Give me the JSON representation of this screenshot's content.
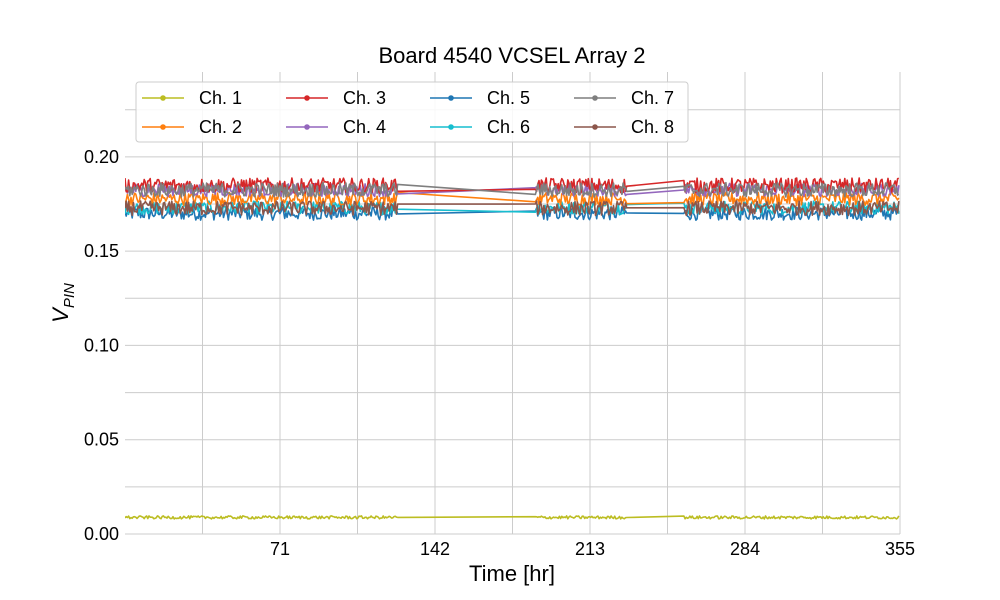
{
  "chart_data": {
    "type": "line",
    "title": "Board 4540 VCSEL Array 2",
    "xlabel": "Time [hr]",
    "ylabel_main": "V",
    "ylabel_sub": "PIN",
    "xlim": [
      0,
      355
    ],
    "ylim": [
      0,
      0.245
    ],
    "xticks": [
      71,
      142,
      213,
      284,
      355
    ],
    "xtick_labels": [
      "71",
      "142",
      "213",
      "284",
      "355"
    ],
    "xgrid_minor": [
      35.5,
      106.5,
      177.5,
      248.5,
      319.5
    ],
    "yticks": [
      0.0,
      0.05,
      0.1,
      0.15,
      0.2
    ],
    "ytick_labels": [
      "0.00",
      "0.05",
      "0.10",
      "0.15",
      "0.20"
    ],
    "ygrid_minor": [
      0.025,
      0.075,
      0.125,
      0.175,
      0.225
    ],
    "grid": true,
    "legend_position": "top-left",
    "legend_columns": 4,
    "segments": [
      [
        0,
        125
      ],
      [
        188,
        230
      ],
      [
        256,
        355
      ]
    ],
    "series": [
      {
        "name": "Ch. 1",
        "color": "#bcbd22",
        "center": 0.0088,
        "noise": 0.0008
      },
      {
        "name": "Ch. 2",
        "color": "#ff7f0e",
        "center": 0.1778,
        "noise": 0.0035
      },
      {
        "name": "Ch. 3",
        "color": "#d62728",
        "center": 0.1848,
        "noise": 0.004
      },
      {
        "name": "Ch. 4",
        "color": "#9467bd",
        "center": 0.1825,
        "noise": 0.0035
      },
      {
        "name": "Ch. 5",
        "color": "#1f77b4",
        "center": 0.17,
        "noise": 0.0036
      },
      {
        "name": "Ch. 6",
        "color": "#17becf",
        "center": 0.173,
        "noise": 0.0035
      },
      {
        "name": "Ch. 7",
        "color": "#7f7f7f",
        "center": 0.1825,
        "noise": 0.0038
      },
      {
        "name": "Ch. 8",
        "color": "#8c564b",
        "center": 0.1728,
        "noise": 0.0038
      }
    ]
  }
}
